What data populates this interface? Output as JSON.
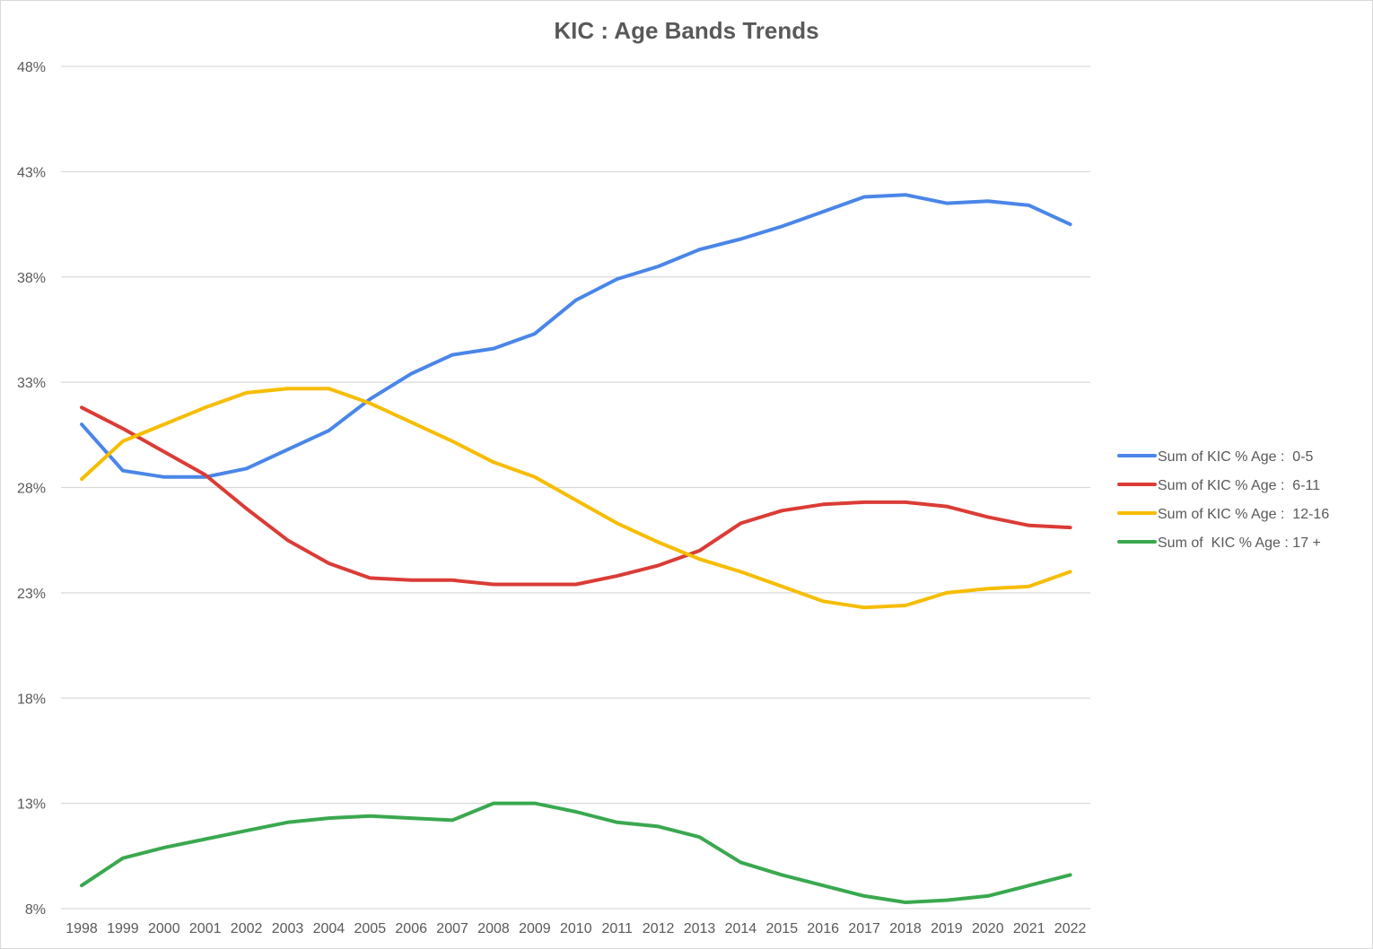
{
  "chart_data": {
    "type": "line",
    "title": "KIC : Age Bands Trends",
    "xlabel": "",
    "ylabel": "",
    "ylim": [
      8,
      48
    ],
    "yticks": [
      8,
      13,
      18,
      23,
      28,
      33,
      38,
      43,
      48
    ],
    "y_tick_labels": [
      "8%",
      "13%",
      "18%",
      "23%",
      "28%",
      "33%",
      "38%",
      "43%",
      "48%"
    ],
    "grid": true,
    "legend_position": "right",
    "categories": [
      "1998",
      "1999",
      "2000",
      "2001",
      "2002",
      "2003",
      "2004",
      "2005",
      "2006",
      "2007",
      "2008",
      "2009",
      "2010",
      "2011",
      "2012",
      "2013",
      "2014",
      "2015",
      "2016",
      "2017",
      "2018",
      "2019",
      "2020",
      "2021",
      "2022"
    ],
    "series": [
      {
        "name": "Sum of KIC % Age :  0-5",
        "color": "#4a86e8",
        "values": [
          31.0,
          28.8,
          28.5,
          28.5,
          28.9,
          29.8,
          30.7,
          32.2,
          33.4,
          34.3,
          34.6,
          35.3,
          36.9,
          37.9,
          38.5,
          39.3,
          39.8,
          40.4,
          41.1,
          41.8,
          41.9,
          41.5,
          41.6,
          41.4,
          40.5
        ]
      },
      {
        "name": "Sum of KIC % Age :  6-11",
        "color": "#db3c36",
        "values": [
          31.8,
          30.8,
          29.7,
          28.6,
          27.0,
          25.5,
          24.4,
          23.7,
          23.6,
          23.6,
          23.4,
          23.4,
          23.4,
          23.8,
          24.3,
          25.0,
          26.3,
          26.9,
          27.2,
          27.3,
          27.3,
          27.1,
          26.6,
          26.2,
          26.1
        ]
      },
      {
        "name": "Sum of KIC % Age :  12-16",
        "color": "#f6bd00",
        "values": [
          28.4,
          30.2,
          31.0,
          31.8,
          32.5,
          32.7,
          32.7,
          32.0,
          31.1,
          30.2,
          29.2,
          28.5,
          27.4,
          26.3,
          25.4,
          24.6,
          24.0,
          23.3,
          22.6,
          22.3,
          22.4,
          23.0,
          23.2,
          23.3,
          24.0
        ]
      },
      {
        "name": "Sum of  KIC % Age : 17 +",
        "color": "#3aa84f",
        "values": [
          9.1,
          10.4,
          10.9,
          11.3,
          11.7,
          12.1,
          12.3,
          12.4,
          12.3,
          12.2,
          13.0,
          13.0,
          12.6,
          12.1,
          11.9,
          11.4,
          10.2,
          9.6,
          9.1,
          8.6,
          8.3,
          8.4,
          8.6,
          9.1,
          9.6
        ]
      }
    ]
  }
}
